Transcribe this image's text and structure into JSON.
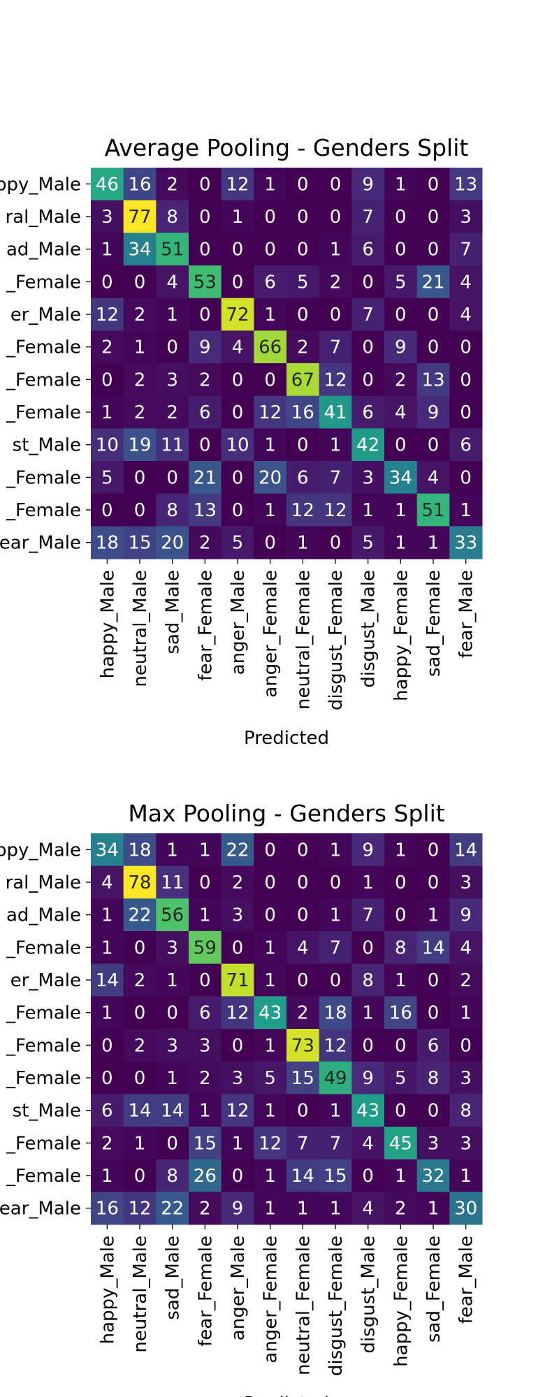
{
  "chart_data": [
    {
      "type": "heatmap",
      "title": "Average Pooling - Genders Split",
      "xlabel": "Predicted",
      "ylabel": "",
      "row_labels": [
        "ppy_Male",
        "ral_Male",
        "ad_Male",
        "_Female",
        "er_Male",
        "_Female",
        "_Female",
        "_Female",
        "st_Male",
        "_Female",
        "_Female",
        "ear_Male"
      ],
      "col_labels": [
        "happy_Male",
        "neutral_Male",
        "sad_Male",
        "fear_Female",
        "anger_Male",
        "anger_Female",
        "neutral_Female",
        "disgust_Female",
        "disgust_Male",
        "happy_Female",
        "sad_Female",
        "fear_Male"
      ],
      "matrix": [
        [
          46,
          16,
          2,
          0,
          12,
          1,
          0,
          0,
          9,
          1,
          0,
          13
        ],
        [
          3,
          77,
          8,
          0,
          1,
          0,
          0,
          0,
          7,
          0,
          0,
          3
        ],
        [
          1,
          34,
          51,
          0,
          0,
          0,
          0,
          1,
          6,
          0,
          0,
          7
        ],
        [
          0,
          0,
          4,
          53,
          0,
          6,
          5,
          2,
          0,
          5,
          21,
          4
        ],
        [
          12,
          2,
          1,
          0,
          72,
          1,
          0,
          0,
          7,
          0,
          0,
          4
        ],
        [
          2,
          1,
          0,
          9,
          4,
          66,
          2,
          7,
          0,
          9,
          0,
          0
        ],
        [
          0,
          2,
          3,
          2,
          0,
          0,
          67,
          12,
          0,
          2,
          13,
          0
        ],
        [
          1,
          2,
          2,
          6,
          0,
          12,
          16,
          41,
          6,
          4,
          9,
          0
        ],
        [
          10,
          19,
          11,
          0,
          10,
          1,
          0,
          1,
          42,
          0,
          0,
          6
        ],
        [
          5,
          0,
          0,
          21,
          0,
          20,
          6,
          7,
          3,
          34,
          4,
          0
        ],
        [
          0,
          0,
          8,
          13,
          0,
          1,
          12,
          12,
          1,
          1,
          51,
          1
        ],
        [
          18,
          15,
          20,
          2,
          5,
          0,
          1,
          0,
          5,
          1,
          1,
          33
        ]
      ],
      "vmin": 0,
      "vmax": 77,
      "colormap": "viridis"
    },
    {
      "type": "heatmap",
      "title": "Max Pooling - Genders Split",
      "xlabel": "Predicted",
      "ylabel": "",
      "row_labels": [
        "ppy_Male",
        "ral_Male",
        "ad_Male",
        "_Female",
        "er_Male",
        "_Female",
        "_Female",
        "_Female",
        "st_Male",
        "_Female",
        "_Female",
        "ear_Male"
      ],
      "col_labels": [
        "happy_Male",
        "neutral_Male",
        "sad_Male",
        "fear_Female",
        "anger_Male",
        "anger_Female",
        "neutral_Female",
        "disgust_Female",
        "disgust_Male",
        "happy_Female",
        "sad_Female",
        "fear_Male"
      ],
      "matrix": [
        [
          34,
          18,
          1,
          1,
          22,
          0,
          0,
          1,
          9,
          1,
          0,
          14
        ],
        [
          4,
          78,
          11,
          0,
          2,
          0,
          0,
          0,
          1,
          0,
          0,
          3
        ],
        [
          1,
          22,
          56,
          1,
          3,
          0,
          0,
          1,
          7,
          0,
          1,
          9
        ],
        [
          1,
          0,
          3,
          59,
          0,
          1,
          4,
          7,
          0,
          8,
          14,
          4
        ],
        [
          14,
          2,
          1,
          0,
          71,
          1,
          0,
          0,
          8,
          1,
          0,
          2
        ],
        [
          1,
          0,
          0,
          6,
          12,
          43,
          2,
          18,
          1,
          16,
          0,
          1
        ],
        [
          0,
          2,
          3,
          3,
          0,
          1,
          73,
          12,
          0,
          0,
          6,
          0
        ],
        [
          0,
          0,
          1,
          2,
          3,
          5,
          15,
          49,
          9,
          5,
          8,
          3
        ],
        [
          6,
          14,
          14,
          1,
          12,
          1,
          0,
          1,
          43,
          0,
          0,
          8
        ],
        [
          2,
          1,
          0,
          15,
          1,
          12,
          7,
          7,
          4,
          45,
          3,
          3
        ],
        [
          1,
          0,
          8,
          26,
          0,
          1,
          14,
          15,
          0,
          1,
          32,
          1
        ],
        [
          16,
          12,
          22,
          2,
          9,
          1,
          1,
          1,
          4,
          2,
          1,
          30
        ]
      ],
      "vmin": 0,
      "vmax": 78,
      "colormap": "viridis"
    }
  ]
}
